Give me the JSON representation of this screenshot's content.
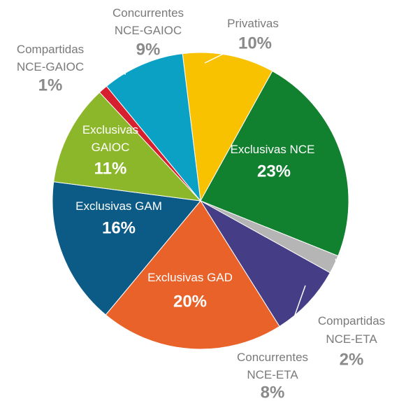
{
  "chart_data": {
    "type": "pie",
    "categories": [
      "Privativas",
      "Exclusivas NCE",
      "Compartidas NCE-ETA",
      "Concurrentes NCE-ETA",
      "Exclusivas GAD",
      "Exclusivas GAM",
      "Exclusivas GAIOC",
      "Compartidas NCE-GAIOC",
      "Concurrentes NCE-GAIOC"
    ],
    "values": [
      10,
      23,
      2,
      8,
      20,
      16,
      11,
      1,
      9
    ],
    "value_labels": [
      "10%",
      "23%",
      "2%",
      "8%",
      "20%",
      "16%",
      "11%",
      "1%",
      "9%"
    ],
    "colors": [
      "#f8c200",
      "#11802f",
      "#b5b5b5",
      "#453d86",
      "#e8622a",
      "#0b5b86",
      "#8db72a",
      "#d6202f",
      "#0aa1c5"
    ]
  }
}
